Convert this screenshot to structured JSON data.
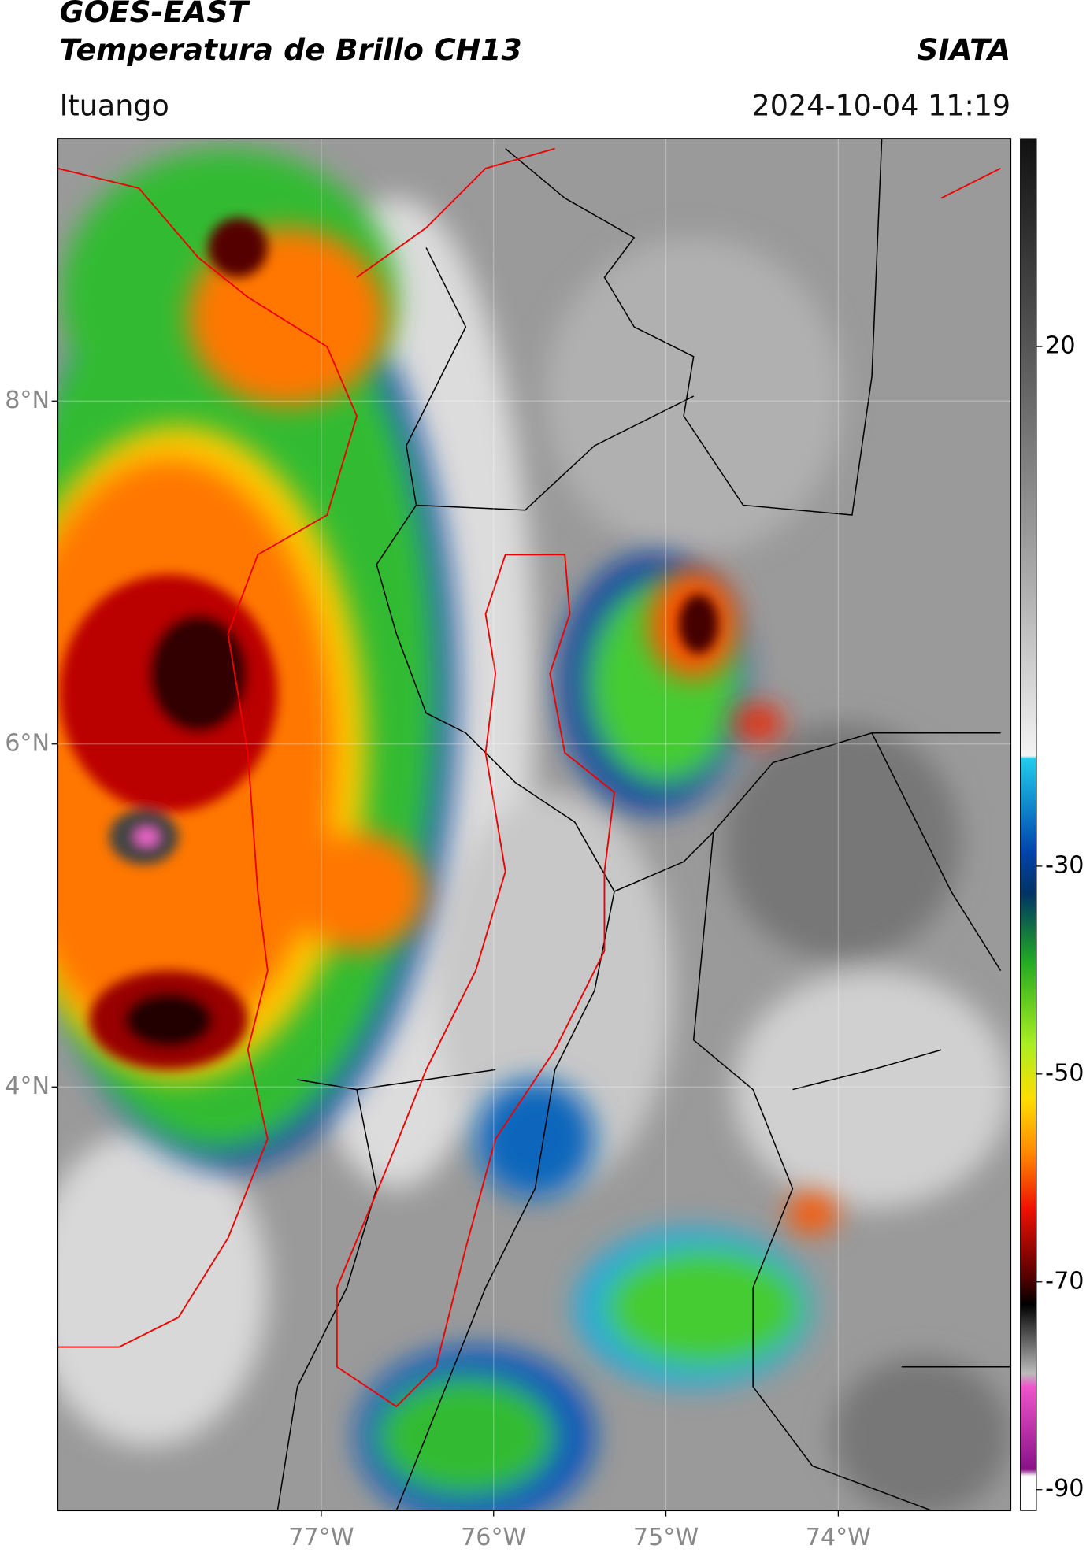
{
  "header": {
    "title": "GOES-EAST",
    "subtitle": "Temperatura de Brillo CH13",
    "source": "SIATA",
    "location": "Ituango",
    "datetime": "2024-10-04 11:19"
  },
  "map": {
    "lon_range": [
      -78.53,
      -73.0
    ],
    "lat_range": [
      1.53,
      9.53
    ],
    "lat_ticks": [
      {
        "value": 8,
        "label": "8°N"
      },
      {
        "value": 6,
        "label": "6°N"
      },
      {
        "value": 4,
        "label": "4°N"
      }
    ],
    "lon_ticks": [
      {
        "value": -77,
        "label": "77°W"
      },
      {
        "value": -76,
        "label": "76°W"
      },
      {
        "value": -75,
        "label": "75°W"
      },
      {
        "value": -74,
        "label": "74°W"
      }
    ]
  },
  "colorbar": {
    "range": [
      -92,
      40
    ],
    "ticks": [
      20,
      -30,
      -50,
      -70,
      -90
    ]
  }
}
